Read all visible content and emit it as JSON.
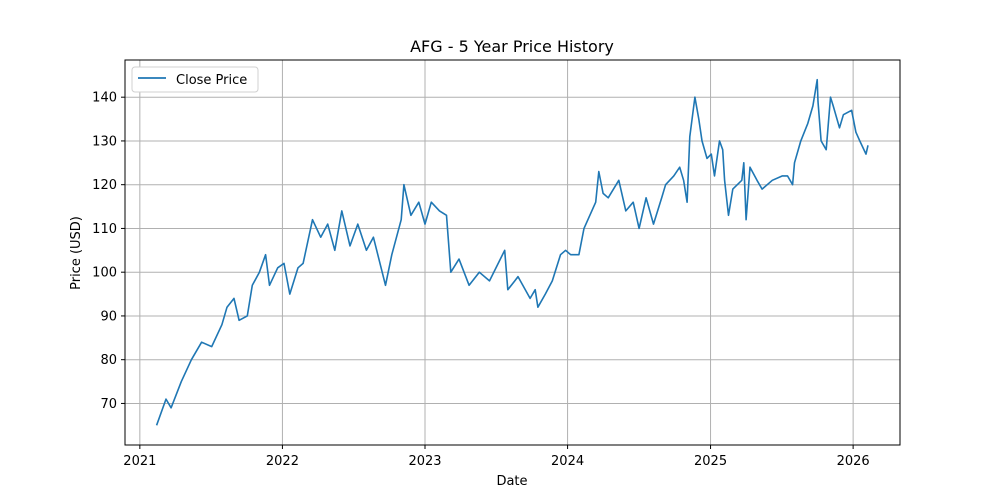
{
  "chart_data": {
    "type": "line",
    "title": "AFG - 5 Year Price History",
    "xlabel": "Date",
    "ylabel": "Price (USD)",
    "grid": true,
    "legend_placement": "top-left",
    "xlim": [
      "2020-11-24",
      "2026-05-01"
    ],
    "ylim": [
      60.5,
      148.5
    ],
    "x_ticks": [
      "2021",
      "2022",
      "2023",
      "2024",
      "2025",
      "2026"
    ],
    "y_ticks": [
      70,
      80,
      90,
      100,
      110,
      120,
      130,
      140
    ],
    "colors": {
      "series": "#1f77b4",
      "grid": "#b0b0b0"
    },
    "series": [
      {
        "name": "Close Price",
        "x": [
          "2021-02-13",
          "2021-03-09",
          "2021-03-22",
          "2021-04-17",
          "2021-05-13",
          "2021-06-08",
          "2021-07-04",
          "2021-07-30",
          "2021-08-12",
          "2021-08-30",
          "2021-09-12",
          "2021-10-03",
          "2021-10-16",
          "2021-11-03",
          "2021-11-19",
          "2021-11-29",
          "2021-12-20",
          "2022-01-05",
          "2022-01-20",
          "2022-02-10",
          "2022-02-23",
          "2022-03-19",
          "2022-04-09",
          "2022-04-27",
          "2022-05-15",
          "2022-06-02",
          "2022-06-23",
          "2022-07-13",
          "2022-08-04",
          "2022-08-22",
          "2022-09-22",
          "2022-10-08",
          "2022-11-01",
          "2022-11-08",
          "2022-11-26",
          "2022-12-16",
          "2023-01-01",
          "2023-01-17",
          "2023-02-07",
          "2023-02-25",
          "2023-03-08",
          "2023-03-29",
          "2023-04-24",
          "2023-05-20",
          "2023-06-15",
          "2023-07-24",
          "2023-08-01",
          "2023-08-19",
          "2023-08-27",
          "2023-09-27",
          "2023-10-10",
          "2023-10-17",
          "2023-11-05",
          "2023-11-23",
          "2023-12-14",
          "2023-12-27",
          "2024-01-09",
          "2024-01-30",
          "2024-02-12",
          "2024-02-22",
          "2024-03-13",
          "2024-03-21",
          "2024-04-01",
          "2024-04-14",
          "2024-05-11",
          "2024-05-29",
          "2024-06-17",
          "2024-07-02",
          "2024-07-20",
          "2024-08-08",
          "2024-08-29",
          "2024-09-08",
          "2024-09-29",
          "2024-10-14",
          "2024-10-24",
          "2024-11-02",
          "2024-11-09",
          "2024-11-22",
          "2024-12-02",
          "2024-12-10",
          "2024-12-23",
          "2025-01-03",
          "2025-01-11",
          "2025-01-24",
          "2025-02-01",
          "2025-02-06",
          "2025-02-16",
          "2025-02-27",
          "2025-03-22",
          "2025-03-27",
          "2025-04-02",
          "2025-04-12",
          "2025-04-30",
          "2025-05-13",
          "2025-06-08",
          "2025-07-04",
          "2025-07-17",
          "2025-07-30",
          "2025-08-04",
          "2025-08-20",
          "2025-09-07",
          "2025-09-20",
          "2025-10-01",
          "2025-10-03",
          "2025-10-11",
          "2025-10-24",
          "2025-11-04",
          "2025-11-11",
          "2025-11-27",
          "2025-12-07",
          "2025-12-28",
          "2026-01-08",
          "2026-01-18",
          "2026-02-03",
          "2026-02-08"
        ],
        "y": [
          65,
          71,
          69,
          75,
          80,
          84,
          83,
          88,
          92,
          94,
          89,
          90,
          97,
          100,
          104,
          97,
          101,
          102,
          95,
          101,
          102,
          112,
          108,
          111,
          105,
          114,
          106,
          111,
          105,
          108,
          97,
          104,
          112,
          120,
          113,
          116,
          111,
          116,
          114,
          113,
          100,
          103,
          97,
          100,
          98,
          105,
          96,
          98,
          99,
          94,
          96,
          92,
          95,
          98,
          104,
          105,
          104,
          104,
          110,
          112,
          116,
          123,
          118,
          117,
          121,
          114,
          116,
          110,
          117,
          111,
          117,
          120,
          122,
          124,
          121,
          116,
          131,
          140,
          135,
          130,
          126,
          127,
          122,
          130,
          128,
          121,
          113,
          119,
          121,
          125,
          112,
          124,
          121,
          119,
          121,
          122,
          122,
          120,
          125,
          130,
          134,
          138,
          144,
          139,
          130,
          128,
          140,
          138,
          133,
          136,
          137,
          132,
          130,
          127,
          129
        ]
      }
    ]
  }
}
